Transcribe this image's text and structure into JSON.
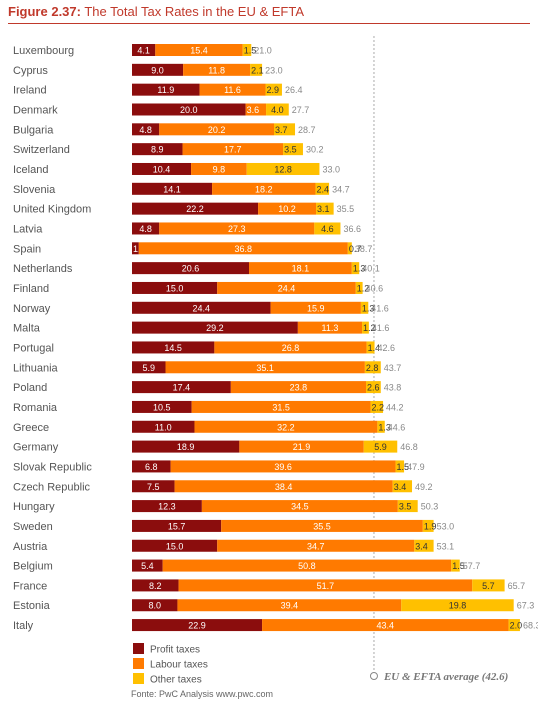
{
  "title": {
    "prefix": "Figure 2.37:",
    "text": "The Total Tax Rates in the EU & EFTA"
  },
  "colors": {
    "profit": "#8b0d0d",
    "labour": "#ff7a00",
    "other": "#ffc000",
    "average_line": "#aaaaaa",
    "title": "#c0392b"
  },
  "chart_data": {
    "type": "bar",
    "orientation": "horizontal",
    "stacked": true,
    "categories": [
      "Luxembourg",
      "Cyprus",
      "Ireland",
      "Denmark",
      "Bulgaria",
      "Switzerland",
      "Iceland",
      "Slovenia",
      "United Kingdom",
      "Latvia",
      "Spain",
      "Netherlands",
      "Finland",
      "Norway",
      "Malta",
      "Portugal",
      "Lithuania",
      "Poland",
      "Romania",
      "Greece",
      "Germany",
      "Slovak Republic",
      "Czech Republic",
      "Hungary",
      "Sweden",
      "Austria",
      "Belgium",
      "France",
      "Estonia",
      "Italy"
    ],
    "series": [
      {
        "name": "Profit taxes",
        "values": [
          4.1,
          9.0,
          11.9,
          20.0,
          4.8,
          8.9,
          10.4,
          14.1,
          22.2,
          4.8,
          1.2,
          20.6,
          15.0,
          24.4,
          29.2,
          14.5,
          5.9,
          17.4,
          10.5,
          11.0,
          18.9,
          6.8,
          7.5,
          12.3,
          15.7,
          15.0,
          5.4,
          8.2,
          8.0,
          22.9
        ]
      },
      {
        "name": "Labour taxes",
        "values": [
          15.4,
          11.8,
          11.6,
          3.6,
          20.2,
          17.7,
          9.8,
          18.2,
          10.2,
          27.3,
          36.8,
          18.1,
          24.4,
          15.9,
          11.3,
          26.8,
          35.1,
          23.8,
          31.5,
          32.2,
          21.9,
          39.6,
          38.4,
          34.5,
          35.5,
          34.7,
          50.8,
          51.7,
          39.4,
          43.4
        ]
      },
      {
        "name": "Other taxes",
        "values": [
          1.5,
          2.1,
          2.9,
          4.0,
          3.7,
          3.5,
          12.8,
          2.4,
          3.1,
          4.6,
          0.7,
          1.3,
          1.2,
          1.3,
          1.2,
          1.4,
          2.8,
          2.6,
          2.2,
          1.3,
          5.9,
          1.5,
          3.4,
          3.5,
          1.9,
          3.4,
          1.5,
          5.7,
          19.8,
          2.0
        ]
      }
    ],
    "totals": [
      "21.0",
      "23.0",
      "26.4",
      "27.7",
      "28.7",
      "30.2",
      "33.0",
      "34.7",
      "35.5",
      "36.6",
      "38.7",
      "40.1",
      "40.6",
      "41.6",
      "41.6",
      "42.6",
      "43.7",
      "43.8",
      "44.2",
      "44.6",
      "46.8",
      "47.9",
      "49.2",
      "50.3",
      "53.0",
      "53.1",
      "57.7",
      "65.7",
      "67.3",
      "68.3"
    ],
    "average": {
      "label": "EU & EFTA average (42.6)",
      "value": 42.6
    },
    "xlim": [
      0,
      68.3
    ],
    "grid": false,
    "legend_position": "bottom-left"
  },
  "source": "Fonte:  PwC Analysis   www.pwc.com"
}
